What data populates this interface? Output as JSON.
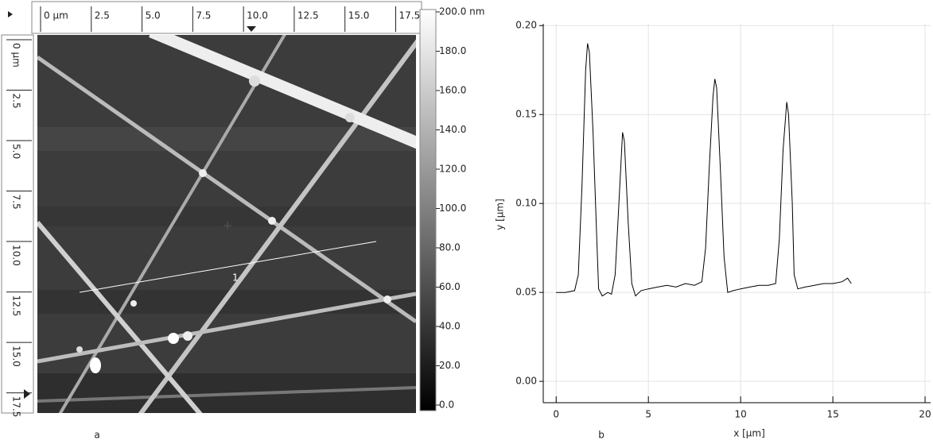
{
  "panel_labels": [
    "a",
    "b"
  ],
  "chart_data": [
    {
      "type": "image",
      "xlim": [
        0,
        18.5
      ],
      "ylim": [
        0,
        18.5
      ],
      "xticks": [
        {
          "value": 0,
          "label": "0 µm"
        },
        2.5,
        {
          "value": 5,
          "label": "5.0"
        },
        7.5,
        {
          "value": 10,
          "label": "10.0"
        },
        12.5,
        {
          "value": 15,
          "label": "15.0"
        },
        17.5
      ],
      "yticks": [
        {
          "value": 0,
          "label": "0 µm"
        },
        2.5,
        {
          "value": 5,
          "label": "5.0"
        },
        7.5,
        {
          "value": 10,
          "label": "10.0"
        },
        12.5,
        {
          "value": 15,
          "label": "15.0"
        },
        17.5
      ],
      "colorbar": {
        "clim": [
          0,
          200
        ],
        "ticks": [
          {
            "value": 200,
            "label": "200.0 nm"
          },
          {
            "value": 180,
            "label": "180.0"
          },
          {
            "value": 160,
            "label": "160.0"
          },
          {
            "value": 140,
            "label": "140.0"
          },
          {
            "value": 120,
            "label": "120.0"
          },
          {
            "value": 100,
            "label": "100.0"
          },
          {
            "value": 80,
            "label": "80.0"
          },
          {
            "value": 60,
            "label": "60.0"
          },
          {
            "value": 40,
            "label": "40.0"
          },
          {
            "value": 20,
            "label": "20.0"
          },
          {
            "value": 0,
            "label": "0.0"
          }
        ]
      },
      "annotations": [
        "1"
      ]
    },
    {
      "type": "line",
      "xlabel": "x [µm]",
      "ylabel": "y [µm]",
      "xlim": [
        -0.7,
        20.3
      ],
      "ylim": [
        -0.012,
        0.201
      ],
      "xticks": [
        0,
        5,
        10,
        15,
        20
      ],
      "yticks": [
        {
          "value": 0,
          "label": "0.00"
        },
        {
          "value": 0.05,
          "label": "0.05"
        },
        {
          "value": 0.1,
          "label": "0.10"
        },
        {
          "value": 0.15,
          "label": "0.15"
        },
        {
          "value": 0.2,
          "label": "0.20"
        }
      ],
      "grid": true,
      "color": "#000000",
      "x": [
        0,
        0.5,
        1.0,
        1.2,
        1.4,
        1.6,
        1.7,
        1.8,
        2.0,
        2.2,
        2.3,
        2.5,
        2.8,
        3.0,
        3.2,
        3.4,
        3.6,
        3.7,
        3.9,
        4.1,
        4.3,
        4.6,
        5.0,
        5.5,
        6.0,
        6.5,
        7.0,
        7.5,
        7.9,
        8.1,
        8.3,
        8.5,
        8.6,
        8.7,
        8.9,
        9.1,
        9.3,
        9.6,
        10.0,
        10.5,
        11.0,
        11.5,
        11.9,
        12.1,
        12.3,
        12.5,
        12.6,
        12.8,
        12.9,
        13.1,
        13.5,
        14.0,
        14.5,
        15.0,
        15.5,
        15.8,
        16.0
      ],
      "values": [
        0.05,
        0.05,
        0.051,
        0.06,
        0.11,
        0.175,
        0.19,
        0.185,
        0.14,
        0.08,
        0.052,
        0.048,
        0.05,
        0.049,
        0.06,
        0.1,
        0.14,
        0.135,
        0.09,
        0.055,
        0.048,
        0.051,
        0.052,
        0.053,
        0.054,
        0.053,
        0.055,
        0.054,
        0.056,
        0.075,
        0.12,
        0.16,
        0.17,
        0.165,
        0.12,
        0.07,
        0.05,
        0.051,
        0.052,
        0.053,
        0.054,
        0.054,
        0.055,
        0.08,
        0.13,
        0.157,
        0.15,
        0.1,
        0.06,
        0.052,
        0.053,
        0.054,
        0.055,
        0.055,
        0.056,
        0.058,
        0.055
      ]
    }
  ]
}
